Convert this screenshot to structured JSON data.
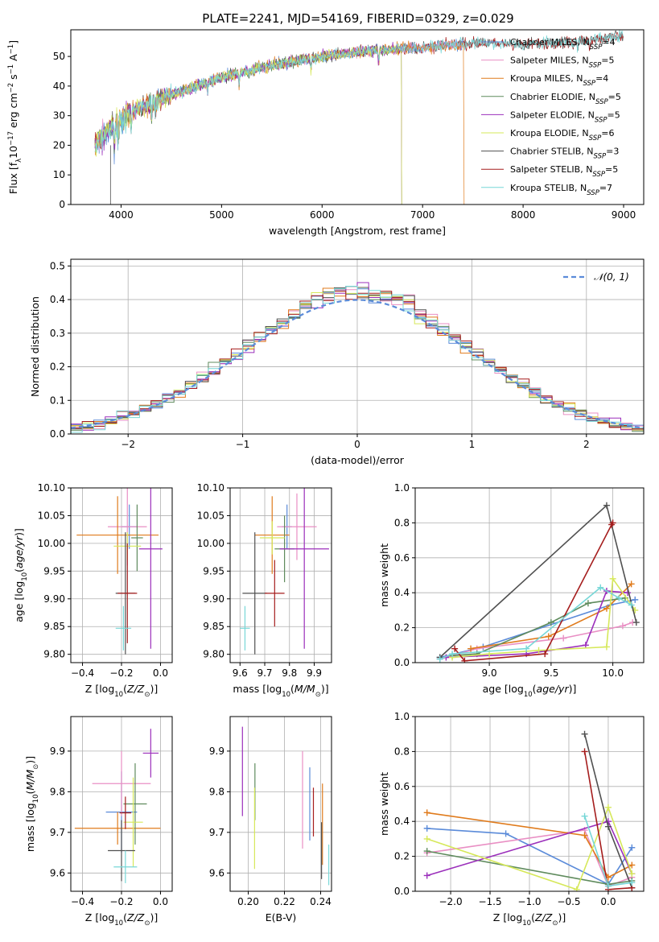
{
  "title": "PLATE=2241, MJD=54169, FIBERID=0329, z=0.029",
  "series_colors": [
    "#5b8bd9",
    "#e98fc4",
    "#e07b1c",
    "#5f8b5d",
    "#9b2fbb",
    "#d6e85a",
    "#505050",
    "#a51d1d",
    "#77d7d7"
  ],
  "series_names": [
    "Chabrier MILES, N_SSP=4",
    "Salpeter MILES, N_SSP=5",
    "Kroupa MILES, N_SSP=4",
    "Chabrier ELODIE, N_SSP=5",
    "Salpeter ELODIE, N_SSP=5",
    "Kroupa ELODIE, N_SSP=6",
    "Chabrier STELIB, N_SSP=3",
    "Salpeter STELIB, N_SSP=5",
    "Kroupa STELIB, N_SSP=7"
  ],
  "chart_data": [
    {
      "id": "spectrum",
      "type": "line",
      "title": "PLATE=2241, MJD=54169, FIBERID=0329, z=0.029",
      "xlabel": "wavelength [Angstrom, rest frame]",
      "ylabel": "Flux [f_λ 10^-17 erg cm^-2 s^-1 A^-1]",
      "xlim": [
        3500,
        9200
      ],
      "ylim": [
        0,
        59
      ],
      "xticks": [
        4000,
        5000,
        6000,
        7000,
        8000,
        9000
      ],
      "yticks": [
        0,
        10,
        20,
        30,
        40,
        50
      ],
      "legend_placement": "right",
      "continuum": [
        [
          3740,
          20
        ],
        [
          3900,
          26
        ],
        [
          4000,
          29
        ],
        [
          4200,
          33
        ],
        [
          4500,
          37
        ],
        [
          5000,
          43
        ],
        [
          5500,
          47
        ],
        [
          6000,
          50
        ],
        [
          6500,
          52
        ],
        [
          7000,
          53
        ],
        [
          7500,
          54.5
        ],
        [
          8000,
          54
        ],
        [
          8500,
          55
        ],
        [
          9000,
          57
        ]
      ],
      "segments": [
        {
          "series": "Chabrier MILES, N_SSP=4",
          "x": [
            3740,
            7400
          ]
        },
        {
          "series": "Salpeter MILES, N_SSP=5",
          "x": [
            3740,
            7400
          ]
        },
        {
          "series": "Kroupa MILES, N_SSP=4",
          "x": [
            3740,
            7410
          ]
        },
        {
          "series": "Chabrier ELODIE, N_SSP=5",
          "x": [
            3740,
            6790
          ]
        },
        {
          "series": "Salpeter ELODIE, N_SSP=5",
          "x": [
            3740,
            6790
          ]
        },
        {
          "series": "Kroupa ELODIE, N_SSP=6",
          "x": [
            3740,
            6790
          ]
        },
        {
          "series": "Chabrier STELIB, N_SSP=3",
          "x": [
            3740,
            9000
          ]
        },
        {
          "series": "Salpeter STELIB, N_SSP=5",
          "x": [
            3740,
            9000
          ]
        },
        {
          "series": "Kroupa STELIB, N_SSP=7",
          "x": [
            3740,
            9000
          ]
        }
      ]
    },
    {
      "id": "residuals",
      "type": "line",
      "xlabel": "(data-model)/error",
      "ylabel": "Normed distribution",
      "xlim": [
        -2.5,
        2.5
      ],
      "ylim": [
        0,
        0.52
      ],
      "xticks": [
        -2,
        -1,
        0,
        1,
        2
      ],
      "yticks": [
        0.0,
        0.1,
        0.2,
        0.3,
        0.4,
        0.5
      ],
      "legend": [
        "𝒩(0, 1)"
      ],
      "legend_placement": "upper right",
      "bin_width": 0.1,
      "reference": {
        "name": "𝒩(0, 1)",
        "mean": 0,
        "sigma": 1
      }
    },
    {
      "id": "age_vs_Z",
      "type": "scatter",
      "xlabel": "Z [log10(Z/Z☉)]",
      "ylabel": "age [log10(age/yr)]",
      "xlim": [
        -0.46,
        0.06
      ],
      "ylim": [
        9.785,
        10.1
      ],
      "xticks": [
        -0.4,
        -0.2,
        0.0
      ],
      "yticks": [
        9.8,
        9.85,
        9.9,
        9.95,
        10.0,
        10.05,
        10.1
      ],
      "points": [
        {
          "x": -0.16,
          "y": 10.03,
          "xerr": 0.04,
          "yerr": 0.04
        },
        {
          "x": -0.17,
          "y": 10.03,
          "xerr": 0.1,
          "yerr": 0.07
        },
        {
          "x": -0.22,
          "y": 10.015,
          "xerr": 0.21,
          "yerr": 0.07
        },
        {
          "x": -0.12,
          "y": 10.01,
          "xerr": 0.03,
          "yerr": 0.06
        },
        {
          "x": -0.05,
          "y": 9.99,
          "xerr": 0.06,
          "yerr": 0.18
        },
        {
          "x": -0.17,
          "y": 9.995,
          "xerr": 0.07,
          "yerr": 0.025
        },
        {
          "x": -0.18,
          "y": 9.91,
          "xerr": 0.05,
          "yerr": 0.11
        },
        {
          "x": -0.17,
          "y": 9.91,
          "xerr": 0.05,
          "yerr": 0.09
        },
        {
          "x": -0.19,
          "y": 9.847,
          "xerr": 0.04,
          "yerr": 0.04
        }
      ]
    },
    {
      "id": "age_vs_mass",
      "type": "scatter",
      "xlabel": "mass [log10(M/M☉)]",
      "ylabel": "",
      "xlim": [
        9.56,
        9.97
      ],
      "ylim": [
        9.785,
        10.1
      ],
      "xticks": [
        9.6,
        9.7,
        9.8,
        9.9
      ],
      "yticks": [
        9.8,
        9.85,
        9.9,
        9.95,
        10.0,
        10.05,
        10.1
      ],
      "points": [
        {
          "x": 9.79,
          "y": 10.03,
          "xerr": 0.02,
          "yerr": 0.04
        },
        {
          "x": 9.83,
          "y": 10.03,
          "xerr": 0.08,
          "yerr": 0.06
        },
        {
          "x": 9.73,
          "y": 10.015,
          "xerr": 0.07,
          "yerr": 0.07
        },
        {
          "x": 9.78,
          "y": 9.99,
          "xerr": 0.04,
          "yerr": 0.06
        },
        {
          "x": 9.86,
          "y": 9.99,
          "xerr": 0.1,
          "yerr": 0.18
        },
        {
          "x": 9.73,
          "y": 10.01,
          "xerr": 0.05,
          "yerr": 0.03
        },
        {
          "x": 9.66,
          "y": 9.91,
          "xerr": 0.05,
          "yerr": 0.11
        },
        {
          "x": 9.74,
          "y": 9.91,
          "xerr": 0.04,
          "yerr": 0.06
        },
        {
          "x": 9.62,
          "y": 9.847,
          "xerr": 0.02,
          "yerr": 0.04
        }
      ]
    },
    {
      "id": "weight_vs_age",
      "type": "line",
      "xlabel": "age [log10(age/yr)]",
      "ylabel": "mass weight",
      "xlim": [
        8.4,
        10.25
      ],
      "ylim": [
        0,
        1.0
      ],
      "xticks": [
        9.0,
        9.5,
        10.0
      ],
      "yticks": [
        0.0,
        0.2,
        0.4,
        0.6,
        0.8,
        1.0
      ],
      "series": [
        {
          "name": "Chabrier MILES, N_SSP=4",
          "x": [
            8.6,
            8.95,
            9.98,
            10.18
          ],
          "y": [
            0.03,
            0.09,
            0.33,
            0.36
          ]
        },
        {
          "name": "Salpeter MILES, N_SSP=5",
          "x": [
            8.6,
            8.9,
            9.6,
            10.08,
            10.16
          ],
          "y": [
            0.02,
            0.08,
            0.14,
            0.21,
            0.23
          ]
        },
        {
          "name": "Kroupa MILES, N_SSP=4",
          "x": [
            8.85,
            9.48,
            9.95,
            10.15
          ],
          "y": [
            0.08,
            0.15,
            0.31,
            0.45
          ]
        },
        {
          "name": "Chabrier ELODIE, N_SSP=5",
          "x": [
            8.7,
            8.9,
            9.5,
            9.8,
            10.1
          ],
          "y": [
            0.04,
            0.05,
            0.23,
            0.34,
            0.37
          ]
        },
        {
          "name": "Salpeter ELODIE, N_SSP=5",
          "x": [
            8.65,
            9.3,
            9.78,
            9.95,
            10.12
          ],
          "y": [
            0.03,
            0.05,
            0.1,
            0.41,
            0.4
          ]
        },
        {
          "name": "Kroupa ELODIE, N_SSP=6",
          "x": [
            8.7,
            9.0,
            9.4,
            9.95,
            10.0,
            10.18
          ],
          "y": [
            0.03,
            0.05,
            0.07,
            0.09,
            0.48,
            0.3
          ]
        },
        {
          "name": "Chabrier STELIB, N_SSP=3",
          "x": [
            8.6,
            9.95,
            10.19
          ],
          "y": [
            0.03,
            0.9,
            0.23
          ]
        },
        {
          "name": "Salpeter STELIB, N_SSP=5",
          "x": [
            8.72,
            8.8,
            9.45,
            9.99,
            10.0
          ],
          "y": [
            0.08,
            0.01,
            0.05,
            0.79,
            0.8
          ]
        },
        {
          "name": "Kroupa STELIB, N_SSP=7",
          "x": [
            8.6,
            8.7,
            9.3,
            9.9,
            10.05,
            10.15
          ],
          "y": [
            0.02,
            0.05,
            0.08,
            0.43,
            0.37,
            0.33
          ]
        }
      ]
    },
    {
      "id": "mass_vs_Z",
      "type": "scatter",
      "xlabel": "Z [log10(Z/Z☉)]",
      "ylabel": "mass [log10(M/M☉)]",
      "xlim": [
        -0.46,
        0.06
      ],
      "ylim": [
        9.555,
        9.985
      ],
      "xticks": [
        -0.4,
        -0.2,
        0.0
      ],
      "yticks": [
        9.6,
        9.7,
        9.8,
        9.9
      ],
      "points": [
        {
          "x": -0.2,
          "y": 9.75,
          "xerr": 0.08,
          "yerr": 0.1
        },
        {
          "x": -0.2,
          "y": 9.82,
          "xerr": 0.15,
          "yerr": 0.08
        },
        {
          "x": -0.22,
          "y": 9.71,
          "xerr": 0.22,
          "yerr": 0.04
        },
        {
          "x": -0.13,
          "y": 9.77,
          "xerr": 0.06,
          "yerr": 0.1
        },
        {
          "x": -0.05,
          "y": 9.895,
          "xerr": 0.04,
          "yerr": 0.06
        },
        {
          "x": -0.14,
          "y": 9.725,
          "xerr": 0.05,
          "yerr": 0.11
        },
        {
          "x": -0.2,
          "y": 9.655,
          "xerr": 0.07,
          "yerr": 0.075
        },
        {
          "x": -0.18,
          "y": 9.748,
          "xerr": 0.03,
          "yerr": 0.04
        },
        {
          "x": -0.18,
          "y": 9.615,
          "xerr": 0.06,
          "yerr": 0.04
        }
      ]
    },
    {
      "id": "mass_vs_EBV",
      "type": "scatter",
      "xlabel": "E(B-V)",
      "ylabel": "",
      "xlim": [
        0.19,
        0.246
      ],
      "ylim": [
        9.555,
        9.985
      ],
      "xticks": [
        0.2,
        0.22,
        0.24
      ],
      "yticks": [
        9.6,
        9.7,
        9.8,
        9.9
      ],
      "points": [
        {
          "x": 0.234,
          "y": 9.77,
          "xerr": 0,
          "yerr": 0.09
        },
        {
          "x": 0.23,
          "y": 9.78,
          "xerr": 0,
          "yerr": 0.12
        },
        {
          "x": 0.241,
          "y": 9.72,
          "xerr": 0,
          "yerr": 0.1
        },
        {
          "x": 0.2037,
          "y": 9.8,
          "xerr": 0,
          "yerr": 0.07
        },
        {
          "x": 0.1968,
          "y": 9.85,
          "xerr": 0,
          "yerr": 0.11
        },
        {
          "x": 0.2035,
          "y": 9.71,
          "xerr": 0,
          "yerr": 0.1
        },
        {
          "x": 0.2405,
          "y": 9.655,
          "xerr": 0,
          "yerr": 0.07
        },
        {
          "x": 0.236,
          "y": 9.75,
          "xerr": 0,
          "yerr": 0.06
        },
        {
          "x": 0.2445,
          "y": 9.62,
          "xerr": 0,
          "yerr": 0.05
        }
      ]
    },
    {
      "id": "weight_vs_Z",
      "type": "line",
      "xlabel": "Z [log10(Z/Z☉)]",
      "ylabel": "mass weight",
      "xlim": [
        -2.45,
        0.45
      ],
      "ylim": [
        0,
        1.0
      ],
      "xticks": [
        -2.0,
        -1.5,
        -1.0,
        -0.5,
        0.0
      ],
      "yticks": [
        0.0,
        0.2,
        0.4,
        0.6,
        0.8,
        1.0
      ],
      "series": [
        {
          "name": "Chabrier MILES, N_SSP=4",
          "x": [
            -2.3,
            -1.3,
            0.0,
            0.3
          ],
          "y": [
            0.36,
            0.33,
            0.04,
            0.25
          ]
        },
        {
          "name": "Salpeter MILES, N_SSP=5",
          "x": [
            -2.3,
            -0.3,
            0.0,
            0.3
          ],
          "y": [
            0.22,
            0.35,
            0.03,
            0.08
          ]
        },
        {
          "name": "Kroupa MILES, N_SSP=4",
          "x": [
            -2.3,
            -0.3,
            0.0,
            0.3
          ],
          "y": [
            0.45,
            0.32,
            0.08,
            0.15
          ]
        },
        {
          "name": "Chabrier ELODIE, N_SSP=5",
          "x": [
            -2.3,
            0.0,
            0.3
          ],
          "y": [
            0.23,
            0.04,
            0.06
          ]
        },
        {
          "name": "Salpeter ELODIE, N_SSP=5",
          "x": [
            -2.3,
            0.0,
            0.3
          ],
          "y": [
            0.09,
            0.4,
            0.1
          ]
        },
        {
          "name": "Kroupa ELODIE, N_SSP=6",
          "x": [
            -2.3,
            -0.4,
            0.0,
            0.3
          ],
          "y": [
            0.3,
            0.01,
            0.48,
            0.1
          ]
        },
        {
          "name": "Chabrier STELIB, N_SSP=3",
          "x": [
            -0.3,
            0.0,
            0.3
          ],
          "y": [
            0.9,
            0.37,
            0.02
          ]
        },
        {
          "name": "Salpeter STELIB, N_SSP=5",
          "x": [
            -0.3,
            0.0,
            0.3
          ],
          "y": [
            0.8,
            0.01,
            0.02
          ]
        },
        {
          "name": "Kroupa STELIB, N_SSP=7",
          "x": [
            -0.3,
            0.0,
            0.3
          ],
          "y": [
            0.43,
            0.03,
            0.05
          ]
        }
      ]
    }
  ]
}
